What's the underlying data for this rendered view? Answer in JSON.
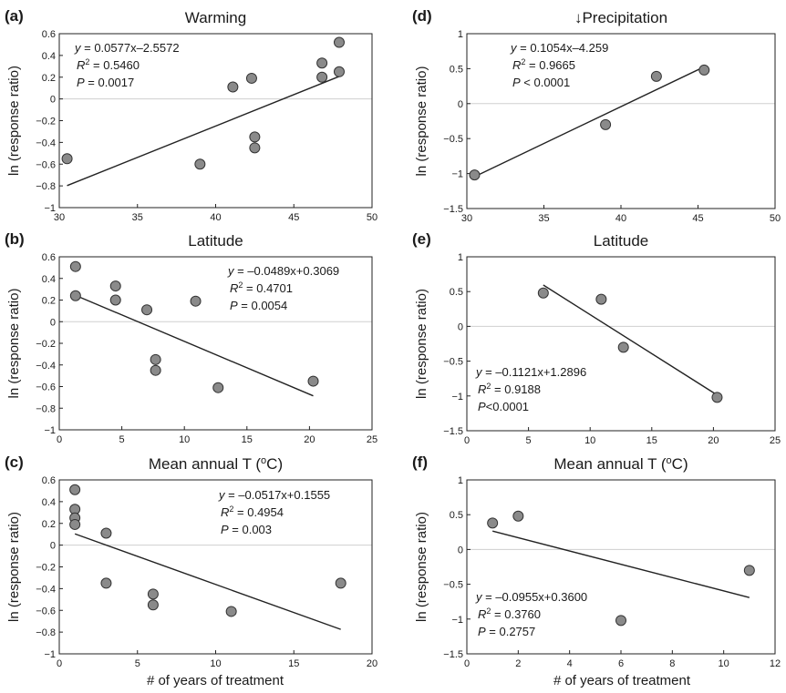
{
  "figure": {
    "ylabel": "ln (response ratio)",
    "xlabel_bottom": "# of years of treatment"
  },
  "chart_data": [
    {
      "type": "scatter",
      "label": "(a)",
      "title": "Warming",
      "xlim": [
        30,
        50
      ],
      "ylim": [
        -1,
        0.6
      ],
      "xticks": [
        "30",
        "35",
        "40",
        "45",
        "50"
      ],
      "yticks": [
        "0.6",
        "0.4",
        "0.2",
        "0",
        "-0.2",
        "-0.4",
        "-0.6",
        "-0.8",
        "-1"
      ],
      "points": [
        {
          "x": 30.5,
          "y": -0.55
        },
        {
          "x": 39.0,
          "y": -0.6
        },
        {
          "x": 41.1,
          "y": 0.11
        },
        {
          "x": 42.3,
          "y": 0.19
        },
        {
          "x": 42.5,
          "y": -0.35
        },
        {
          "x": 42.5,
          "y": -0.45
        },
        {
          "x": 46.8,
          "y": 0.33
        },
        {
          "x": 46.8,
          "y": 0.2
        },
        {
          "x": 47.9,
          "y": 0.52
        },
        {
          "x": 47.9,
          "y": 0.25
        }
      ],
      "fit": {
        "slope": 0.0577,
        "intercept": -2.5572,
        "x_range": [
          30.5,
          47.9
        ]
      },
      "annotation": {
        "line1": "y = 0.0577x–2.5572",
        "r2": "R2 = 0.5460",
        "p": "P = 0.0017",
        "position": "top-left"
      }
    },
    {
      "type": "scatter",
      "label": "(b)",
      "title": "Latitude",
      "xlim": [
        0,
        25
      ],
      "ylim": [
        -1,
        0.6
      ],
      "xticks": [
        "0",
        "5",
        "10",
        "15",
        "20",
        "25"
      ],
      "yticks": [
        "0.6",
        "0.4",
        "0.2",
        "0",
        "-0.2",
        "-0.4",
        "-0.6",
        "-0.8",
        "-1"
      ],
      "points": [
        {
          "x": 1.3,
          "y": 0.51
        },
        {
          "x": 1.3,
          "y": 0.24
        },
        {
          "x": 4.5,
          "y": 0.33
        },
        {
          "x": 4.5,
          "y": 0.2
        },
        {
          "x": 7.0,
          "y": 0.11
        },
        {
          "x": 7.7,
          "y": -0.35
        },
        {
          "x": 7.7,
          "y": -0.45
        },
        {
          "x": 10.9,
          "y": 0.19
        },
        {
          "x": 12.7,
          "y": -0.61
        },
        {
          "x": 20.3,
          "y": -0.55
        }
      ],
      "fit": {
        "slope": -0.0489,
        "intercept": 0.3069,
        "x_range": [
          1.3,
          20.3
        ]
      },
      "annotation": {
        "line1": "y = –0.0489x+0.3069",
        "r2": "R2 = 0.4701",
        "p": "P = 0.0054",
        "position": "top-right"
      }
    },
    {
      "type": "scatter",
      "label": "(c)",
      "title": "Mean annual T (oC)",
      "xlim": [
        0,
        20
      ],
      "ylim": [
        -1,
        0.6
      ],
      "xticks": [
        "0",
        "5",
        "10",
        "15",
        "20"
      ],
      "yticks": [
        "0.6",
        "0.4",
        "0.2",
        "0",
        "-0.2",
        "-0.4",
        "-0.6",
        "-0.8",
        "-1"
      ],
      "points": [
        {
          "x": 1.0,
          "y": 0.51
        },
        {
          "x": 1.0,
          "y": 0.33
        },
        {
          "x": 1.0,
          "y": 0.25
        },
        {
          "x": 1.0,
          "y": 0.19
        },
        {
          "x": 3.0,
          "y": 0.11
        },
        {
          "x": 3.0,
          "y": -0.35
        },
        {
          "x": 6.0,
          "y": -0.45
        },
        {
          "x": 6.0,
          "y": -0.55
        },
        {
          "x": 11.0,
          "y": -0.61
        },
        {
          "x": 18.0,
          "y": -0.35
        }
      ],
      "fit": {
        "slope": -0.0517,
        "intercept": 0.1555,
        "x_range": [
          1.0,
          18.0
        ]
      },
      "annotation": {
        "line1": "y = –0.0517x+0.1555",
        "r2": "R2 = 0.4954",
        "p": "P = 0.003",
        "position": "top-right"
      }
    },
    {
      "type": "scatter",
      "label": "(d)",
      "title": "↓Precipitation",
      "xlim": [
        30,
        50
      ],
      "ylim": [
        -1.5,
        1
      ],
      "xticks": [
        "30",
        "35",
        "40",
        "45",
        "50"
      ],
      "yticks": [
        "1",
        "0.5",
        "0",
        "-0.5",
        "-1",
        "-1.5"
      ],
      "points": [
        {
          "x": 30.5,
          "y": -1.02
        },
        {
          "x": 39.0,
          "y": -0.3
        },
        {
          "x": 42.3,
          "y": 0.39
        },
        {
          "x": 45.4,
          "y": 0.48
        }
      ],
      "fit": {
        "slope": 0.1054,
        "intercept": -4.259,
        "x_range": [
          30.5,
          45.4
        ]
      },
      "annotation": {
        "line1": "y = 0.1054x–4.259",
        "r2": "R2 = 0.9665",
        "p": "P < 0.0001",
        "position": "top-left"
      }
    },
    {
      "type": "scatter",
      "label": "(e)",
      "title": "Latitude",
      "xlim": [
        0,
        25
      ],
      "ylim": [
        -1.5,
        1
      ],
      "xticks": [
        "0",
        "5",
        "10",
        "15",
        "20",
        "25"
      ],
      "yticks": [
        "1",
        "0.5",
        "0",
        "-0.5",
        "-1",
        "-1.5"
      ],
      "points": [
        {
          "x": 6.2,
          "y": 0.48
        },
        {
          "x": 10.9,
          "y": 0.39
        },
        {
          "x": 12.7,
          "y": -0.3
        },
        {
          "x": 20.3,
          "y": -1.02
        }
      ],
      "fit": {
        "slope": -0.1121,
        "intercept": 1.2896,
        "x_range": [
          6.2,
          20.3
        ]
      },
      "annotation": {
        "line1": "y = –0.1121x+1.2896",
        "r2": "R2 = 0.9188",
        "p": "P<0.0001",
        "position": "bottom-left"
      }
    },
    {
      "type": "scatter",
      "label": "(f)",
      "title": "Mean annual T (oC)",
      "xlim": [
        0,
        12
      ],
      "ylim": [
        -1.5,
        1
      ],
      "xticks": [
        "0",
        "2",
        "4",
        "6",
        "8",
        "10",
        "12"
      ],
      "yticks": [
        "1",
        "0.5",
        "0",
        "-0.5",
        "-1",
        "-1.5"
      ],
      "points": [
        {
          "x": 1.0,
          "y": 0.38
        },
        {
          "x": 2.0,
          "y": 0.48
        },
        {
          "x": 6.0,
          "y": -1.02
        },
        {
          "x": 11.0,
          "y": -0.3
        }
      ],
      "fit": {
        "slope": -0.0955,
        "intercept": 0.36,
        "x_range": [
          1.0,
          11.0
        ]
      },
      "annotation": {
        "line1": "y = –0.0955x+0.3600",
        "r2": "R2 = 0.3760",
        "p": "P = 0.2757",
        "position": "bottom-left"
      }
    }
  ]
}
